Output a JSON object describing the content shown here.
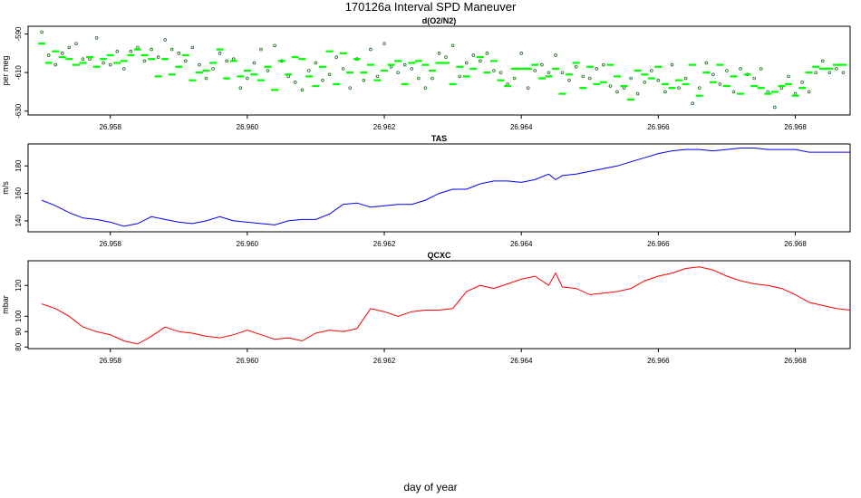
{
  "figure": {
    "title": "170126a   Interval SPD Maneuver",
    "xlabel": "day of year"
  },
  "colors": {
    "o2n2_points": "#1a6b1a",
    "o2n2_means": "#00ff00",
    "tas": "#0000ff",
    "qcxc": "#ff0000",
    "axes": "#000000"
  },
  "chart_data": [
    {
      "type": "scatter",
      "title": "d(O2/N2)",
      "ylabel": "per meg",
      "xlim": [
        26.9568,
        26.9688
      ],
      "ylim": [
        -632,
        -586
      ],
      "yticks": [
        -590,
        -610,
        -630
      ],
      "xticks": [
        26.958,
        26.96,
        26.962,
        26.964,
        26.966,
        26.968
      ],
      "xtick_labels": [
        "26.958",
        "26.960",
        "26.962",
        "26.964",
        "26.966",
        "26.968"
      ],
      "series": [
        {
          "role": "points",
          "x": [
            26.957,
            26.9571,
            26.9572,
            26.9573,
            26.9574,
            26.9575,
            26.9576,
            26.9577,
            26.9578,
            26.9579,
            26.958,
            26.9581,
            26.9582,
            26.9583,
            26.9584,
            26.9585,
            26.9586,
            26.9587,
            26.9588,
            26.9589,
            26.959,
            26.9591,
            26.9592,
            26.9593,
            26.9594,
            26.9595,
            26.9596,
            26.9597,
            26.9598,
            26.9599,
            26.96,
            26.9601,
            26.9602,
            26.9603,
            26.9604,
            26.9605,
            26.9606,
            26.9607,
            26.9608,
            26.9609,
            26.961,
            26.9611,
            26.9612,
            26.9613,
            26.9614,
            26.9615,
            26.9616,
            26.9617,
            26.9618,
            26.9619,
            26.962,
            26.9621,
            26.9622,
            26.9623,
            26.9624,
            26.9625,
            26.9626,
            26.9627,
            26.9628,
            26.9629,
            26.963,
            26.9631,
            26.9632,
            26.9633,
            26.9634,
            26.9635,
            26.9636,
            26.9637,
            26.9638,
            26.9639,
            26.964,
            26.9641,
            26.9642,
            26.9643,
            26.9644,
            26.9645,
            26.9646,
            26.9647,
            26.9648,
            26.9649,
            26.965,
            26.9651,
            26.9652,
            26.9653,
            26.9654,
            26.9655,
            26.9656,
            26.9657,
            26.9658,
            26.9659,
            26.966,
            26.9661,
            26.9662,
            26.9663,
            26.9664,
            26.9665,
            26.9666,
            26.9667,
            26.9668,
            26.9669,
            26.967,
            26.9671,
            26.9672,
            26.9673,
            26.9674,
            26.9675,
            26.9676,
            26.9677,
            26.9678,
            26.9679,
            26.968,
            26.9681,
            26.9682,
            26.9683,
            26.9684,
            26.9685,
            26.9686,
            26.9687
          ],
          "y": [
            -589,
            -601,
            -606,
            -600,
            -597,
            -595,
            -603,
            -603,
            -592,
            -605,
            -606,
            -599,
            -608,
            -599,
            -597,
            -604,
            -598,
            -602,
            -593,
            -598,
            -600,
            -604,
            -597,
            -606,
            -613,
            -608,
            -600,
            -604,
            -603,
            -618,
            -613,
            -605,
            -598,
            -609,
            -596,
            -604,
            -612,
            -615,
            -619,
            -609,
            -605,
            -614,
            -611,
            -602,
            -608,
            -618,
            -603,
            -614,
            -598,
            -612,
            -595,
            -607,
            -610,
            -606,
            -608,
            -613,
            -618,
            -613,
            -600,
            -602,
            -596,
            -612,
            -605,
            -601,
            -604,
            -600,
            -609,
            -610,
            -616,
            -613,
            -600,
            -618,
            -609,
            -606,
            -610,
            -601,
            -610,
            -614,
            -607,
            -612,
            -613,
            -608,
            -606,
            -617,
            -620,
            -618,
            -613,
            -621,
            -615,
            -609,
            -614,
            -620,
            -606,
            -618,
            -613,
            -626,
            -618,
            -605,
            -611,
            -616,
            -609,
            -620,
            -608,
            -611,
            -613,
            -608,
            -620,
            -628,
            -618,
            -612,
            -621,
            -615,
            -620,
            -610,
            -604,
            -610,
            -608,
            -610
          ],
          "name": ""
        },
        {
          "role": "means",
          "x": [
            26.957,
            26.9571,
            26.9572,
            26.9573,
            26.9574,
            26.9575,
            26.9576,
            26.9577,
            26.9578,
            26.9579,
            26.958,
            26.9581,
            26.9582,
            26.9583,
            26.9584,
            26.9585,
            26.9586,
            26.9587,
            26.9588,
            26.9589,
            26.959,
            26.9591,
            26.9592,
            26.9593,
            26.9594,
            26.9595,
            26.9596,
            26.9597,
            26.9598,
            26.9599,
            26.96,
            26.9601,
            26.9602,
            26.9603,
            26.9604,
            26.9605,
            26.9606,
            26.9607,
            26.9608,
            26.9609,
            26.961,
            26.9611,
            26.9612,
            26.9613,
            26.9614,
            26.9615,
            26.9616,
            26.9617,
            26.9618,
            26.9619,
            26.962,
            26.9621,
            26.9622,
            26.9623,
            26.9624,
            26.9625,
            26.9626,
            26.9627,
            26.9628,
            26.9629,
            26.963,
            26.9631,
            26.9632,
            26.9633,
            26.9634,
            26.9635,
            26.9636,
            26.9637,
            26.9638,
            26.9639,
            26.964,
            26.9641,
            26.9642,
            26.9643,
            26.9644,
            26.9645,
            26.9646,
            26.9647,
            26.9648,
            26.9649,
            26.965,
            26.9651,
            26.9652,
            26.9653,
            26.9654,
            26.9655,
            26.9656,
            26.9657,
            26.9658,
            26.9659,
            26.966,
            26.9661,
            26.9662,
            26.9663,
            26.9664,
            26.9665,
            26.9666,
            26.9667,
            26.9668,
            26.9669,
            26.967,
            26.9671,
            26.9672,
            26.9673,
            26.9674,
            26.9675,
            26.9676,
            26.9677,
            26.9678,
            26.9679,
            26.968,
            26.9681,
            26.9682,
            26.9683,
            26.9684,
            26.9685,
            26.9686,
            26.9687
          ],
          "y": [
            -595,
            -605,
            -599,
            -602,
            -603,
            -606,
            -605,
            -602,
            -607,
            -603,
            -601,
            -605,
            -604,
            -601,
            -598,
            -601,
            -603,
            -612,
            -603,
            -611,
            -607,
            -601,
            -614,
            -610,
            -609,
            -605,
            -598,
            -613,
            -604,
            -612,
            -609,
            -611,
            -614,
            -607,
            -619,
            -604,
            -611,
            -602,
            -603,
            -612,
            -617,
            -607,
            -599,
            -616,
            -600,
            -610,
            -603,
            -610,
            -606,
            -614,
            -609,
            -606,
            -604,
            -616,
            -605,
            -604,
            -606,
            -609,
            -605,
            -605,
            -616,
            -607,
            -612,
            -608,
            -602,
            -610,
            -604,
            -614,
            -617,
            -608,
            -608,
            -608,
            -606,
            -613,
            -612,
            -608,
            -621,
            -611,
            -605,
            -618,
            -607,
            -616,
            -615,
            -606,
            -612,
            -617,
            -624,
            -609,
            -611,
            -613,
            -607,
            -616,
            -618,
            -614,
            -616,
            -606,
            -622,
            -610,
            -615,
            -606,
            -617,
            -612,
            -621,
            -611,
            -617,
            -618,
            -621,
            -620,
            -617,
            -616,
            -622,
            -618,
            -610,
            -607,
            -608,
            -608,
            -606,
            -606
          ],
          "name": ""
        }
      ]
    },
    {
      "type": "line",
      "title": "TAS",
      "ylabel": "m/s",
      "xlim": [
        26.9568,
        26.9688
      ],
      "ylim": [
        132,
        196
      ],
      "yticks": [
        140,
        160,
        180
      ],
      "xticks": [
        26.958,
        26.96,
        26.962,
        26.964,
        26.966,
        26.968
      ],
      "xtick_labels": [
        "26.958",
        "26.960",
        "26.962",
        "26.964",
        "26.966",
        "26.968"
      ],
      "series": [
        {
          "name": "",
          "x": [
            26.957,
            26.9572,
            26.9574,
            26.9576,
            26.9578,
            26.958,
            26.9582,
            26.9584,
            26.9586,
            26.9588,
            26.959,
            26.9592,
            26.9594,
            26.9596,
            26.9598,
            26.96,
            26.9602,
            26.9604,
            26.9606,
            26.9608,
            26.961,
            26.9612,
            26.9614,
            26.9616,
            26.9618,
            26.962,
            26.9622,
            26.9624,
            26.9626,
            26.9628,
            26.963,
            26.9632,
            26.9634,
            26.9636,
            26.9638,
            26.964,
            26.9642,
            26.9644,
            26.9645,
            26.9646,
            26.9648,
            26.965,
            26.9652,
            26.9654,
            26.9656,
            26.9658,
            26.966,
            26.9662,
            26.9664,
            26.9666,
            26.9668,
            26.967,
            26.9672,
            26.9674,
            26.9676,
            26.9678,
            26.968,
            26.9682,
            26.9684,
            26.9686,
            26.9688
          ],
          "y": [
            155,
            151,
            146,
            142,
            141,
            139,
            136,
            138,
            143,
            141,
            139,
            138,
            140,
            143,
            140,
            139,
            138,
            137,
            140,
            141,
            141,
            145,
            152,
            153,
            150,
            151,
            152,
            152,
            155,
            160,
            163,
            163,
            167,
            169,
            169,
            168,
            170,
            174,
            170,
            173,
            174,
            176,
            178,
            180,
            183,
            186,
            189,
            191,
            192,
            192,
            191,
            192,
            193,
            193,
            192,
            192,
            192,
            190,
            190,
            190,
            190
          ],
          "color_key": "tas"
        }
      ]
    },
    {
      "type": "line",
      "title": "QCXC",
      "ylabel": "mbar",
      "xlim": [
        26.9568,
        26.9688
      ],
      "ylim": [
        79,
        136
      ],
      "yticks": [
        80,
        90,
        100,
        120
      ],
      "xticks": [
        26.958,
        26.96,
        26.962,
        26.964,
        26.966,
        26.968
      ],
      "xtick_labels": [
        "26.958",
        "26.960",
        "26.962",
        "26.964",
        "26.966",
        "26.968"
      ],
      "series": [
        {
          "name": "",
          "x": [
            26.957,
            26.9572,
            26.9574,
            26.9576,
            26.9578,
            26.958,
            26.9582,
            26.9584,
            26.9586,
            26.9588,
            26.959,
            26.9592,
            26.9594,
            26.9596,
            26.9598,
            26.96,
            26.9602,
            26.9604,
            26.9606,
            26.9608,
            26.961,
            26.9612,
            26.9614,
            26.9616,
            26.9618,
            26.962,
            26.9622,
            26.9624,
            26.9626,
            26.9628,
            26.963,
            26.9632,
            26.9634,
            26.9636,
            26.9638,
            26.964,
            26.9642,
            26.9644,
            26.9645,
            26.9646,
            26.9648,
            26.965,
            26.9652,
            26.9654,
            26.9656,
            26.9658,
            26.966,
            26.9662,
            26.9664,
            26.9666,
            26.9668,
            26.967,
            26.9672,
            26.9674,
            26.9676,
            26.9678,
            26.968,
            26.9682,
            26.9684,
            26.9686,
            26.9688
          ],
          "y": [
            108,
            105,
            100,
            93,
            90,
            88,
            84,
            82,
            87,
            93,
            90,
            89,
            87,
            86,
            88,
            91,
            88,
            85,
            86,
            84,
            89,
            91,
            90,
            92,
            105,
            103,
            100,
            103,
            104,
            104,
            105,
            116,
            120,
            118,
            121,
            124,
            126,
            120,
            128,
            119,
            118,
            114,
            115,
            116,
            118,
            123,
            126,
            128,
            131,
            132,
            130,
            126,
            123,
            121,
            120,
            118,
            114,
            109,
            107,
            105,
            104
          ],
          "color_key": "qcxc"
        }
      ]
    }
  ]
}
